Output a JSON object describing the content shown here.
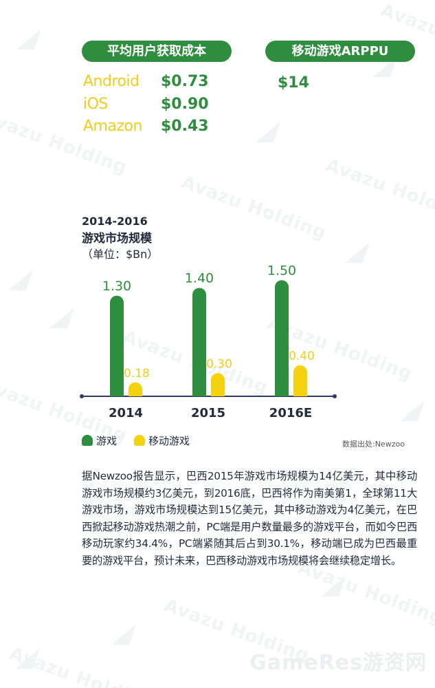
{
  "cost_section": {
    "title": "平均用户获取成本",
    "rows": [
      {
        "platform": "Android",
        "value": "$0.73"
      },
      {
        "platform": "iOS",
        "value": "$0.90"
      },
      {
        "platform": "Amazon",
        "value": "$0.43"
      }
    ]
  },
  "arppu_section": {
    "title": "移动游戏ARPPU",
    "value": "$14"
  },
  "chart_heading": {
    "range": "2014-2016",
    "title": "游戏市场规模",
    "unit": "（单位：$Bn）"
  },
  "chart_data": {
    "type": "bar",
    "categories": [
      "2014",
      "2015",
      "2016E"
    ],
    "series": [
      {
        "name": "游戏",
        "values": [
          1.3,
          1.4,
          1.5
        ],
        "labels": [
          "1.30",
          "1.40",
          "1.50"
        ],
        "color": "#2e8d3e"
      },
      {
        "name": "移动游戏",
        "values": [
          0.18,
          0.3,
          0.4
        ],
        "labels": [
          "0.18",
          "0.30",
          "0.40"
        ],
        "color": "#f5d20f"
      }
    ],
    "ylim": [
      0,
      1.6
    ],
    "grid": false,
    "legend": "bottom-left",
    "axis_color": "#2a3a6a"
  },
  "source": "数据出处:Newzoo",
  "paragraph": "据Newzoo报告显示，巴西2015年游戏市场规模为14亿美元，其中移动游戏市场规模约3亿美元，到2016底，巴西将作为南美第1，全球第11大游戏市场，游戏市场规模达到15亿美元，其中移动游戏为4亿美元，在巴西掀起移动游戏热潮之前，PC端是用户数量最多的游戏平台，而如今巴西移动玩家约34.4%，PC端紧随其后占到30.1%，移动端已成为巴西最重要的游戏平台，预计未来，巴西移动游戏市场规模将会继续稳定增长。",
  "watermark": {
    "text": "Avazu Holding",
    "corner": "GameRes游资网"
  }
}
